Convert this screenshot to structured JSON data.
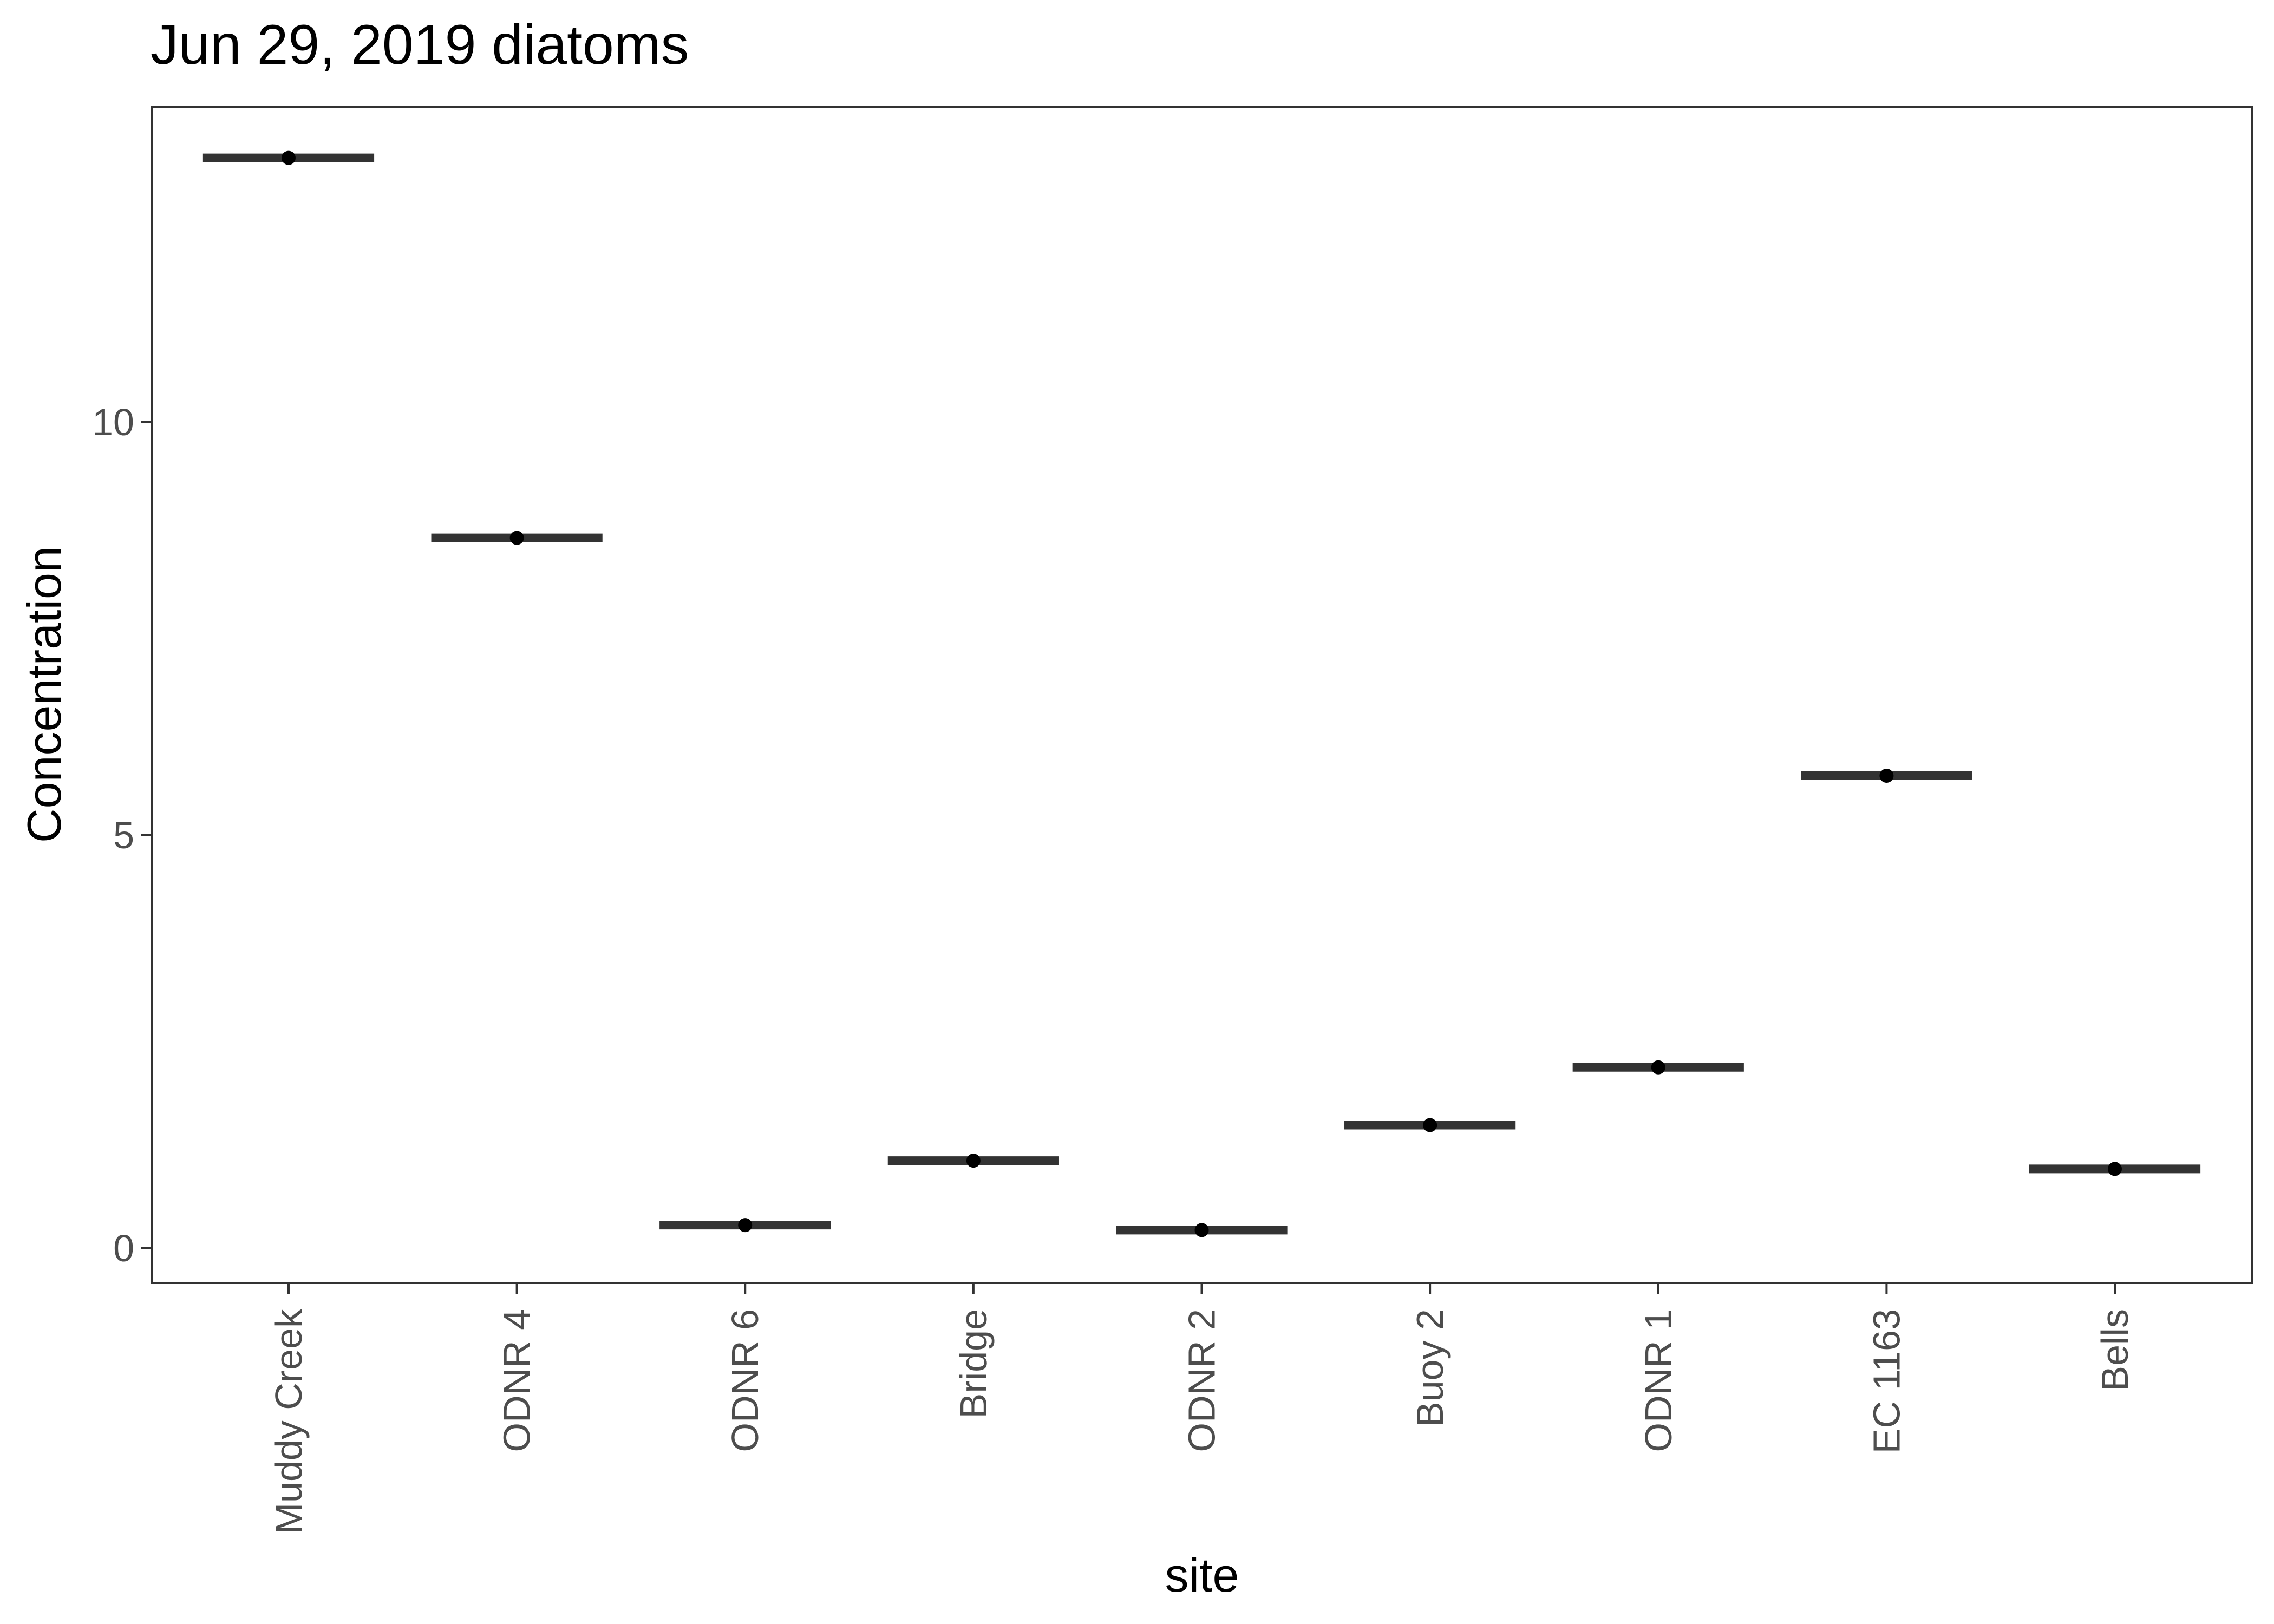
{
  "chart_data": {
    "type": "scatter",
    "title": "Jun 29, 2019 diatoms",
    "xlabel": "site",
    "ylabel": "Concentration",
    "categories": [
      "Muddy Creek",
      "ODNR 4",
      "ODNR 6",
      "Bridge",
      "ODNR 2",
      "Buoy 2",
      "ODNR 1",
      "EC 1163",
      "Bells"
    ],
    "values": [
      13.2,
      8.6,
      0.28,
      1.06,
      0.22,
      1.49,
      2.19,
      5.72,
      0.96
    ],
    "yticks": [
      0,
      5,
      10
    ],
    "ylim": [
      -0.42,
      13.82
    ],
    "grid": false,
    "colors": {
      "median_bar": "#333333",
      "point": "#000000",
      "panel_border": "#333333",
      "tick_label": "#4d4d4d"
    }
  }
}
